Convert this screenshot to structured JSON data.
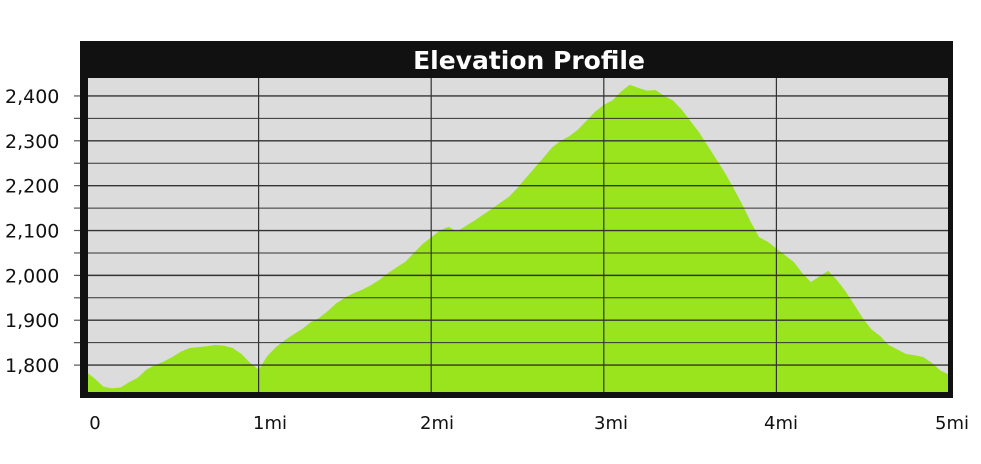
{
  "chart_data": {
    "type": "area",
    "title": "Elevation Profile",
    "xlabel": "",
    "ylabel": "",
    "x_ticks": [
      {
        "value": 0,
        "label": "0"
      },
      {
        "value": 1,
        "label": "1mi"
      },
      {
        "value": 2,
        "label": "2mi"
      },
      {
        "value": 3,
        "label": "3mi"
      },
      {
        "value": 4,
        "label": "4mi"
      },
      {
        "value": 5,
        "label": "5mi"
      }
    ],
    "y_ticks": [
      {
        "value": 1800,
        "label": "1,800"
      },
      {
        "value": 1900,
        "label": "1,900"
      },
      {
        "value": 2000,
        "label": "2,000"
      },
      {
        "value": 2100,
        "label": "2,100"
      },
      {
        "value": 2200,
        "label": "2,200"
      },
      {
        "value": 2300,
        "label": "2,300"
      },
      {
        "value": 2400,
        "label": "2,400"
      }
    ],
    "xlim": [
      0,
      5
    ],
    "ylim": [
      1740,
      2440
    ],
    "grid": true,
    "colors": {
      "fill": "#99e41c",
      "plot_background": "#dcdcdc",
      "frame": "#111111",
      "grid": "#333333",
      "title_text": "#ffffff"
    },
    "x": [
      0,
      0.05,
      0.1,
      0.15,
      0.2,
      0.25,
      0.3,
      0.35,
      0.4,
      0.45,
      0.5,
      0.55,
      0.6,
      0.65,
      0.7,
      0.75,
      0.8,
      0.85,
      0.9,
      0.95,
      1.0,
      1.05,
      1.1,
      1.15,
      1.2,
      1.25,
      1.3,
      1.35,
      1.4,
      1.45,
      1.5,
      1.55,
      1.6,
      1.65,
      1.7,
      1.75,
      1.8,
      1.85,
      1.9,
      1.95,
      2.0,
      2.05,
      2.1,
      2.15,
      2.2,
      2.25,
      2.3,
      2.35,
      2.4,
      2.45,
      2.5,
      2.55,
      2.6,
      2.65,
      2.7,
      2.75,
      2.8,
      2.85,
      2.9,
      2.95,
      3.0,
      3.05,
      3.1,
      3.15,
      3.2,
      3.25,
      3.3,
      3.35,
      3.4,
      3.45,
      3.5,
      3.55,
      3.6,
      3.65,
      3.7,
      3.75,
      3.8,
      3.85,
      3.9,
      3.95,
      4.0,
      4.05,
      4.1,
      4.15,
      4.2,
      4.25,
      4.3,
      4.35,
      4.4,
      4.45,
      4.5,
      4.55,
      4.6,
      4.65,
      4.7,
      4.75,
      4.8,
      4.85,
      4.9,
      4.95,
      5.0
    ],
    "series": [
      {
        "values": [
          1782,
          1770,
          1752,
          1748,
          1750,
          1762,
          1772,
          1790,
          1800,
          1808,
          1818,
          1830,
          1838,
          1840,
          1842,
          1845,
          1843,
          1838,
          1825,
          1805,
          1790,
          1820,
          1840,
          1855,
          1868,
          1880,
          1895,
          1905,
          1920,
          1938,
          1950,
          1960,
          1968,
          1978,
          1990,
          2005,
          2018,
          2030,
          2050,
          2070,
          2085,
          2100,
          2108,
          2098,
          2110,
          2122,
          2135,
          2148,
          2162,
          2175,
          2195,
          2218,
          2240,
          2262,
          2285,
          2300,
          2310,
          2325,
          2345,
          2365,
          2380,
          2390,
          2410,
          2425,
          2418,
          2412,
          2413,
          2400,
          2390,
          2370,
          2345,
          2320,
          2290,
          2260,
          2230,
          2195,
          2160,
          2120,
          2085,
          2075,
          2060,
          2045,
          2030,
          2005,
          1985,
          1998,
          2010,
          1990,
          1965,
          1935,
          1905,
          1880,
          1865,
          1845,
          1835,
          1825,
          1822,
          1818,
          1805,
          1788,
          1780
        ]
      }
    ]
  }
}
